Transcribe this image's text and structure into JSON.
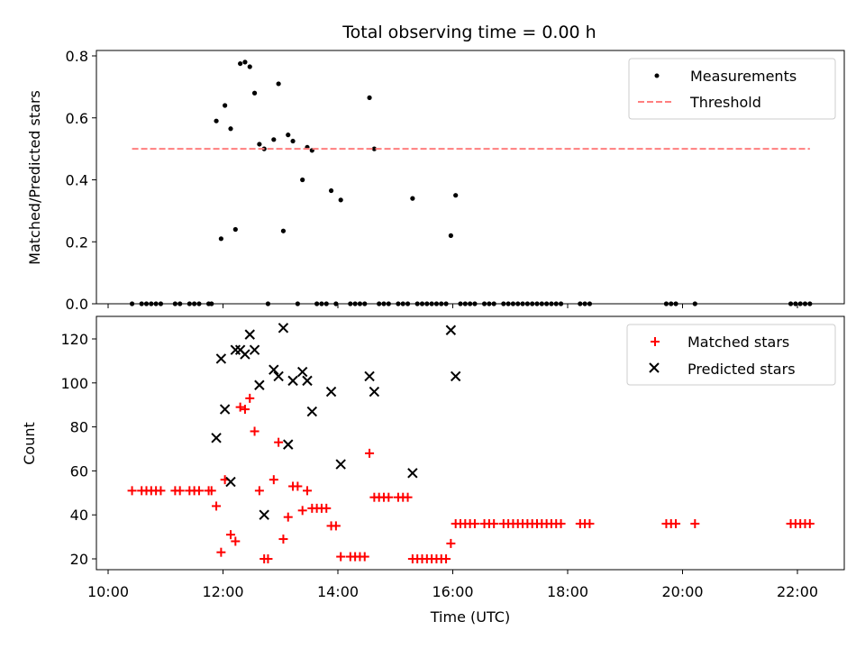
{
  "chart_data": {
    "type": "scatter",
    "title": "Total observing time = 0.00 h",
    "xlabel": "Time (UTC)",
    "x_axis": {
      "unit": "hours UTC",
      "xlim": [
        "10:00",
        "22:50"
      ],
      "ticks": [
        "10:00",
        "12:00",
        "14:00",
        "16:00",
        "18:00",
        "20:00",
        "22:00"
      ]
    },
    "panels": [
      {
        "ylabel": "Matched/Predicted stars",
        "ylim": [
          0,
          0.82
        ],
        "yticks": [
          "0.0",
          "0.2",
          "0.4",
          "0.6",
          "0.8"
        ],
        "legend_position": "upper right",
        "series": [
          {
            "name": "Measurements",
            "marker": "dot",
            "color": "#000000",
            "points": [
              [
                "10:25",
                0
              ],
              [
                "10:35",
                0
              ],
              [
                "10:40",
                0
              ],
              [
                "10:45",
                0
              ],
              [
                "10:50",
                0
              ],
              [
                "10:55",
                0
              ],
              [
                "11:10",
                0
              ],
              [
                "11:15",
                0
              ],
              [
                "11:25",
                0
              ],
              [
                "11:30",
                0
              ],
              [
                "11:35",
                0
              ],
              [
                "11:45",
                0
              ],
              [
                "11:48",
                0
              ],
              [
                "11:53",
                0.59
              ],
              [
                "11:58",
                0.21
              ],
              [
                "12:02",
                0.64
              ],
              [
                "12:08",
                0.565
              ],
              [
                "12:13",
                0.24
              ],
              [
                "12:18",
                0.775
              ],
              [
                "12:23",
                0.78
              ],
              [
                "12:28",
                0.765
              ],
              [
                "12:33",
                0.68
              ],
              [
                "12:38",
                0.515
              ],
              [
                "12:43",
                0.5
              ],
              [
                "12:47",
                0
              ],
              [
                "12:53",
                0.53
              ],
              [
                "12:58",
                0.71
              ],
              [
                "13:03",
                0.235
              ],
              [
                "13:08",
                0.545
              ],
              [
                "13:13",
                0.525
              ],
              [
                "13:18",
                0
              ],
              [
                "13:23",
                0.4
              ],
              [
                "13:28",
                0.505
              ],
              [
                "13:33",
                0.495
              ],
              [
                "13:38",
                0
              ],
              [
                "13:43",
                0
              ],
              [
                "13:48",
                0
              ],
              [
                "13:53",
                0.365
              ],
              [
                "13:58",
                0
              ],
              [
                "14:03",
                0.335
              ],
              [
                "14:13",
                0
              ],
              [
                "14:18",
                0
              ],
              [
                "14:23",
                0
              ],
              [
                "14:28",
                0
              ],
              [
                "14:33",
                0.665
              ],
              [
                "14:38",
                0.5
              ],
              [
                "14:43",
                0
              ],
              [
                "14:48",
                0
              ],
              [
                "14:53",
                0
              ],
              [
                "15:03",
                0
              ],
              [
                "15:08",
                0
              ],
              [
                "15:13",
                0
              ],
              [
                "15:18",
                0.34
              ],
              [
                "15:23",
                0
              ],
              [
                "15:28",
                0
              ],
              [
                "15:33",
                0
              ],
              [
                "15:38",
                0
              ],
              [
                "15:43",
                0
              ],
              [
                "15:48",
                0
              ],
              [
                "15:53",
                0
              ],
              [
                "15:58",
                0.22
              ],
              [
                "16:03",
                0.35
              ],
              [
                "16:08",
                0
              ],
              [
                "16:13",
                0
              ],
              [
                "16:18",
                0
              ],
              [
                "16:23",
                0
              ],
              [
                "16:33",
                0
              ],
              [
                "16:38",
                0
              ],
              [
                "16:43",
                0
              ],
              [
                "16:53",
                0
              ],
              [
                "16:58",
                0
              ],
              [
                "17:03",
                0
              ],
              [
                "17:08",
                0
              ],
              [
                "17:13",
                0
              ],
              [
                "17:18",
                0
              ],
              [
                "17:23",
                0
              ],
              [
                "17:28",
                0
              ],
              [
                "17:33",
                0
              ],
              [
                "17:38",
                0
              ],
              [
                "17:43",
                0
              ],
              [
                "17:48",
                0
              ],
              [
                "17:53",
                0
              ],
              [
                "18:13",
                0
              ],
              [
                "18:18",
                0
              ],
              [
                "18:23",
                0
              ],
              [
                "19:43",
                0
              ],
              [
                "19:48",
                0
              ],
              [
                "19:53",
                0
              ],
              [
                "20:13",
                0
              ],
              [
                "21:53",
                0
              ],
              [
                "21:58",
                0
              ],
              [
                "22:03",
                0
              ],
              [
                "22:08",
                0
              ],
              [
                "22:13",
                0
              ]
            ]
          },
          {
            "name": "Threshold",
            "marker": "dashed-line",
            "color": "#ff7f7f",
            "points": [
              [
                "10:25",
                0.5
              ],
              [
                "22:13",
                0.5
              ]
            ]
          }
        ]
      },
      {
        "ylabel": "Count",
        "ylim": [
          15,
          131
        ],
        "yticks": [
          "20",
          "40",
          "60",
          "80",
          "100",
          "120"
        ],
        "legend_position": "upper right",
        "series": [
          {
            "name": "Matched stars",
            "marker": "plus",
            "color": "#ff0000",
            "points": [
              [
                "10:25",
                51
              ],
              [
                "10:35",
                51
              ],
              [
                "10:40",
                51
              ],
              [
                "10:45",
                51
              ],
              [
                "10:50",
                51
              ],
              [
                "10:55",
                51
              ],
              [
                "11:10",
                51
              ],
              [
                "11:15",
                51
              ],
              [
                "11:25",
                51
              ],
              [
                "11:30",
                51
              ],
              [
                "11:35",
                51
              ],
              [
                "11:45",
                51
              ],
              [
                "11:48",
                51
              ],
              [
                "11:53",
                44
              ],
              [
                "11:58",
                23
              ],
              [
                "12:02",
                56
              ],
              [
                "12:08",
                31
              ],
              [
                "12:13",
                28
              ],
              [
                "12:18",
                89
              ],
              [
                "12:23",
                88
              ],
              [
                "12:28",
                93
              ],
              [
                "12:33",
                78
              ],
              [
                "12:38",
                51
              ],
              [
                "12:43",
                20
              ],
              [
                "12:47",
                20
              ],
              [
                "12:53",
                56
              ],
              [
                "12:58",
                73
              ],
              [
                "13:03",
                29
              ],
              [
                "13:08",
                39
              ],
              [
                "13:13",
                53
              ],
              [
                "13:18",
                53
              ],
              [
                "13:23",
                42
              ],
              [
                "13:28",
                51
              ],
              [
                "13:33",
                43
              ],
              [
                "13:38",
                43
              ],
              [
                "13:43",
                43
              ],
              [
                "13:48",
                43
              ],
              [
                "13:53",
                35
              ],
              [
                "13:58",
                35
              ],
              [
                "14:03",
                21
              ],
              [
                "14:13",
                21
              ],
              [
                "14:18",
                21
              ],
              [
                "14:23",
                21
              ],
              [
                "14:28",
                21
              ],
              [
                "14:33",
                68
              ],
              [
                "14:38",
                48
              ],
              [
                "14:43",
                48
              ],
              [
                "14:48",
                48
              ],
              [
                "14:53",
                48
              ],
              [
                "15:03",
                48
              ],
              [
                "15:08",
                48
              ],
              [
                "15:13",
                48
              ],
              [
                "15:18",
                20
              ],
              [
                "15:23",
                20
              ],
              [
                "15:28",
                20
              ],
              [
                "15:33",
                20
              ],
              [
                "15:38",
                20
              ],
              [
                "15:43",
                20
              ],
              [
                "15:48",
                20
              ],
              [
                "15:53",
                20
              ],
              [
                "15:58",
                27
              ],
              [
                "16:03",
                36
              ],
              [
                "16:08",
                36
              ],
              [
                "16:13",
                36
              ],
              [
                "16:18",
                36
              ],
              [
                "16:23",
                36
              ],
              [
                "16:33",
                36
              ],
              [
                "16:38",
                36
              ],
              [
                "16:43",
                36
              ],
              [
                "16:53",
                36
              ],
              [
                "16:58",
                36
              ],
              [
                "17:03",
                36
              ],
              [
                "17:08",
                36
              ],
              [
                "17:13",
                36
              ],
              [
                "17:18",
                36
              ],
              [
                "17:23",
                36
              ],
              [
                "17:28",
                36
              ],
              [
                "17:33",
                36
              ],
              [
                "17:38",
                36
              ],
              [
                "17:43",
                36
              ],
              [
                "17:48",
                36
              ],
              [
                "17:53",
                36
              ],
              [
                "18:13",
                36
              ],
              [
                "18:18",
                36
              ],
              [
                "18:23",
                36
              ],
              [
                "19:43",
                36
              ],
              [
                "19:48",
                36
              ],
              [
                "19:53",
                36
              ],
              [
                "20:13",
                36
              ],
              [
                "21:53",
                36
              ],
              [
                "21:58",
                36
              ],
              [
                "22:03",
                36
              ],
              [
                "22:08",
                36
              ],
              [
                "22:13",
                36
              ]
            ]
          },
          {
            "name": "Predicted stars",
            "marker": "x",
            "color": "#000000",
            "points": [
              [
                "11:53",
                75
              ],
              [
                "11:58",
                111
              ],
              [
                "12:02",
                88
              ],
              [
                "12:08",
                55
              ],
              [
                "12:13",
                115
              ],
              [
                "12:18",
                115
              ],
              [
                "12:23",
                113
              ],
              [
                "12:28",
                122
              ],
              [
                "12:33",
                115
              ],
              [
                "12:38",
                99
              ],
              [
                "12:43",
                40
              ],
              [
                "12:53",
                106
              ],
              [
                "12:58",
                103
              ],
              [
                "13:03",
                125
              ],
              [
                "13:08",
                72
              ],
              [
                "13:13",
                101
              ],
              [
                "13:23",
                105
              ],
              [
                "13:28",
                101
              ],
              [
                "13:33",
                87
              ],
              [
                "13:53",
                96
              ],
              [
                "14:03",
                63
              ],
              [
                "14:33",
                103
              ],
              [
                "14:38",
                96
              ],
              [
                "15:18",
                59
              ],
              [
                "15:58",
                124
              ],
              [
                "16:03",
                103
              ]
            ]
          }
        ]
      }
    ]
  }
}
